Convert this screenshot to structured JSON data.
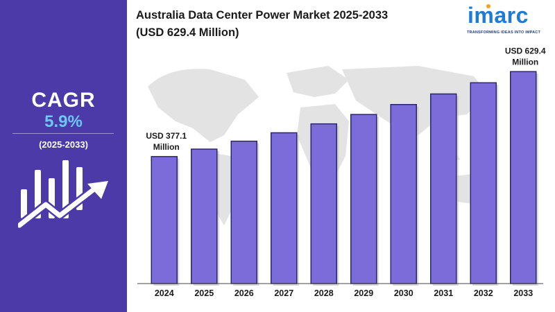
{
  "title_line1": "Australia Data Center Power Market 2025-2033",
  "title_line2": "(USD 629.4 Million)",
  "logo": {
    "name": "imarc",
    "tagline": "TRANSFORMING IDEAS INTO IMPACT"
  },
  "sidebar": {
    "cagr_label": "CAGR",
    "cagr_value": "5.9%",
    "period": "(2025-2033)",
    "icon": "bar-chart-growth-arrow-icon"
  },
  "colors": {
    "sidebar": "#4b3aa8",
    "bar": "#7b6cd9",
    "bar_edge": "#2d2470",
    "accent": "#6ec8f5"
  },
  "chart_data": {
    "type": "bar",
    "categories": [
      "2024",
      "2025",
      "2026",
      "2027",
      "2028",
      "2029",
      "2030",
      "2031",
      "2032",
      "2033"
    ],
    "values": [
      377.1,
      399.3,
      422.8,
      447.8,
      474.2,
      502.1,
      531.7,
      563.1,
      596.3,
      629.4
    ],
    "annotations": [
      {
        "category": "2024",
        "lines": [
          "USD 377.1",
          "Million"
        ]
      },
      {
        "category": "2033",
        "lines": [
          "USD 629.4",
          "Million"
        ]
      }
    ],
    "ylim": [
      0,
      700
    ],
    "grid": false,
    "legend": "none"
  }
}
